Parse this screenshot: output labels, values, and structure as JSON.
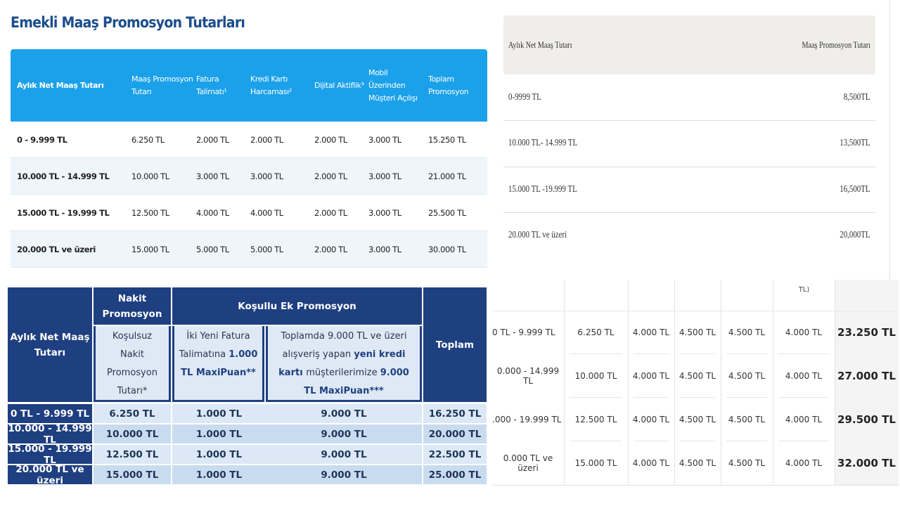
{
  "panel1": {
    "title": "Emekli Maaş Promosyon Tutarları",
    "header": [
      "Aylık Net Maaş Tutarı",
      "Maaş Promosyon Tutarı",
      "Fatura Talimatı¹",
      "Kredi Kartı Harcaması²",
      "Dijital Aktiflik³",
      "Mobil Üzerinden Müşteri Açılışı",
      "Toplam Promosyon"
    ],
    "rows": [
      [
        "0 - 9.999 TL",
        "6.250 TL",
        "2.000 TL",
        "2.000 TL",
        "2.000 TL",
        "3.000 TL",
        "15.250 TL"
      ],
      [
        "10.000 TL - 14.999 TL",
        "10.000 TL",
        "3.000 TL",
        "3.000 TL",
        "2.000 TL",
        "3.000 TL",
        "21.000 TL"
      ],
      [
        "15.000 TL - 19.999 TL",
        "12.500 TL",
        "4.000 TL",
        "4.000 TL",
        "2.000 TL",
        "3.000 TL",
        "25.500 TL"
      ],
      [
        "20.000 TL ve üzeri",
        "15.000 TL",
        "5.000 TL",
        "5.000 TL",
        "2.000 TL",
        "3.000 TL",
        "30.000 TL"
      ]
    ]
  },
  "panel2": {
    "header": [
      "Aylık Net Maaş Tutarı",
      "Maaş Promosyon Tutarı"
    ],
    "rows": [
      [
        "0-9999 TL",
        "8,500TL"
      ],
      [
        "10.000 TL- 14.999 TL",
        "13,500TL"
      ],
      [
        "15.000 TL -19.999 TL",
        "16,500TL"
      ],
      [
        "20.000 TL ve üzeri",
        "20,000TL"
      ]
    ]
  },
  "panel3": {
    "row_label": "Aylık Net Maaş Tutarı",
    "group1": "Nakit Promosyon",
    "group2": "Koşullu Ek Promosyon",
    "total": "Toplam",
    "sub": [
      [
        {
          "text": "Koşulsuz Nakit Promosyon Tutarı*",
          "bold": false
        }
      ],
      [
        {
          "text": "İki Yeni Fatura Talimatına",
          "bold": false
        },
        {
          "text": "1.000 TL MaxiPuan**",
          "bold": true
        }
      ],
      [
        {
          "text": "Toplamda 9.000 TL ve üzeri alışveriş yapan",
          "bold": false
        },
        {
          "text": "yeni kredi kartı",
          "bold": true
        },
        {
          "text": "müşterilerimize",
          "bold": false
        },
        {
          "text": "9.000 TL MaxiPuan***",
          "bold": true
        }
      ]
    ],
    "rows": [
      [
        "0 TL - 9.999 TL",
        "6.250 TL",
        "1.000 TL",
        "9.000 TL",
        "16.250 TL"
      ],
      [
        "10.000 - 14.999 TL",
        "10.000 TL",
        "1.000 TL",
        "9.000 TL",
        "20.000 TL"
      ],
      [
        "15.000 - 19.999 TL",
        "12.500 TL",
        "1.000 TL",
        "9.000 TL",
        "22.500 TL"
      ],
      [
        "20.000 TL ve üzeri",
        "15.000 TL",
        "1.000 TL",
        "9.000 TL",
        "25.000 TL"
      ]
    ]
  },
  "panel4": {
    "header_fragment": "TL)",
    "rows": [
      [
        "0 TL - 9.999 TL",
        "6.250 TL",
        "4.000 TL",
        "4.500 TL",
        "4.500 TL",
        "4.000 TL",
        "23.250 TL"
      ],
      [
        "0.000 - 14.999 TL",
        "10.000 TL",
        "4.000 TL",
        "4.500 TL",
        "4.500 TL",
        "4.000 TL",
        "27.000 TL"
      ],
      [
        ".000 - 19.999 TL",
        "12.500 TL",
        "4.000 TL",
        "4.500 TL",
        "4.500 TL",
        "4.000 TL",
        "29.500 TL"
      ],
      [
        "0.000 TL ve üzeri",
        "15.000 TL",
        "4.000 TL",
        "4.500 TL",
        "4.500 TL",
        "4.000 TL",
        "32.000 TL"
      ]
    ]
  }
}
